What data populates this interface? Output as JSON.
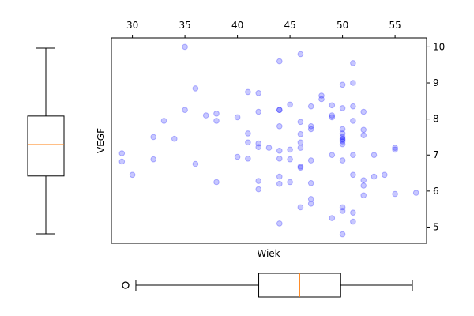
{
  "chart_data": [
    {
      "type": "scatter",
      "xlabel": "Wiek",
      "ylabel": "VEGF",
      "xlim": [
        28,
        58
      ],
      "ylim": [
        4.55,
        10.25
      ],
      "x_ticks": [
        30,
        35,
        40,
        45,
        50,
        55
      ],
      "y_ticks": [
        5,
        6,
        7,
        8,
        9,
        10
      ],
      "x_axis_position": "top",
      "y_axis_position": "right",
      "grid": false,
      "point_color": "#0000ff",
      "point_opacity": 0.22,
      "points": [
        [
          35,
          10.0
        ],
        [
          46,
          9.8
        ],
        [
          44,
          9.6
        ],
        [
          51,
          9.55
        ],
        [
          51,
          9.0
        ],
        [
          50,
          8.95
        ],
        [
          36,
          8.85
        ],
        [
          41,
          8.75
        ],
        [
          42,
          8.72
        ],
        [
          48,
          8.65
        ],
        [
          48,
          8.55
        ],
        [
          45,
          8.4
        ],
        [
          47,
          8.35
        ],
        [
          49,
          8.38
        ],
        [
          51,
          8.35
        ],
        [
          44,
          8.25
        ],
        [
          44,
          8.25
        ],
        [
          35,
          8.25
        ],
        [
          38,
          8.15
        ],
        [
          42,
          8.2
        ],
        [
          52,
          8.2
        ],
        [
          49,
          8.1
        ],
        [
          49,
          8.05
        ],
        [
          50,
          8.3
        ],
        [
          37,
          8.1
        ],
        [
          40,
          8.05
        ],
        [
          33,
          7.95
        ],
        [
          38,
          7.95
        ],
        [
          46,
          7.92
        ],
        [
          51,
          7.95
        ],
        [
          44,
          7.8
        ],
        [
          47,
          7.8
        ],
        [
          47,
          7.72
        ],
        [
          50,
          7.72
        ],
        [
          52,
          7.7
        ],
        [
          50,
          7.6
        ],
        [
          41,
          7.6
        ],
        [
          46,
          7.58
        ],
        [
          52,
          7.55
        ],
        [
          32,
          7.5
        ],
        [
          50,
          7.5
        ],
        [
          34,
          7.45
        ],
        [
          50,
          7.45
        ],
        [
          50,
          7.42
        ],
        [
          50,
          7.38
        ],
        [
          41,
          7.35
        ],
        [
          46,
          7.35
        ],
        [
          42,
          7.32
        ],
        [
          50,
          7.3
        ],
        [
          42,
          7.22
        ],
        [
          43,
          7.2
        ],
        [
          46,
          7.2
        ],
        [
          29,
          7.05
        ],
        [
          44,
          7.12
        ],
        [
          45,
          7.15
        ],
        [
          55,
          7.2
        ],
        [
          55,
          7.15
        ],
        [
          49,
          7.0
        ],
        [
          51,
          7.0
        ],
        [
          53,
          7.0
        ],
        [
          40,
          6.95
        ],
        [
          41,
          6.9
        ],
        [
          44,
          6.9
        ],
        [
          45,
          6.88
        ],
        [
          47,
          6.85
        ],
        [
          50,
          6.85
        ],
        [
          29,
          6.82
        ],
        [
          32,
          6.88
        ],
        [
          36,
          6.75
        ],
        [
          46,
          6.68
        ],
        [
          46,
          6.65
        ],
        [
          30,
          6.45
        ],
        [
          44,
          6.4
        ],
        [
          51,
          6.45
        ],
        [
          53,
          6.4
        ],
        [
          54,
          6.45
        ],
        [
          38,
          6.25
        ],
        [
          42,
          6.28
        ],
        [
          44,
          6.2
        ],
        [
          45,
          6.25
        ],
        [
          47,
          6.22
        ],
        [
          52,
          6.3
        ],
        [
          52,
          6.15
        ],
        [
          42,
          6.05
        ],
        [
          52,
          5.88
        ],
        [
          55,
          5.92
        ],
        [
          57,
          5.95
        ],
        [
          47,
          5.78
        ],
        [
          47,
          5.65
        ],
        [
          46,
          5.55
        ],
        [
          50,
          5.55
        ],
        [
          50,
          5.45
        ],
        [
          51,
          5.4
        ],
        [
          49,
          5.25
        ],
        [
          51,
          5.15
        ],
        [
          44,
          5.1
        ],
        [
          50,
          4.8
        ]
      ]
    },
    {
      "type": "box",
      "orientation": "vertical",
      "axis": "VEGF",
      "whisker_low": 4.8,
      "q1": 6.42,
      "median": 7.3,
      "q3": 8.1,
      "whisker_high": 10.0,
      "outliers": [],
      "median_color": "#ff7f0e"
    },
    {
      "type": "box",
      "orientation": "horizontal",
      "axis": "Wiek",
      "whisker_low": 30,
      "q1": 42,
      "median": 46,
      "q3": 50,
      "whisker_high": 57,
      "outliers": [
        29
      ],
      "median_color": "#ff7f0e"
    }
  ]
}
